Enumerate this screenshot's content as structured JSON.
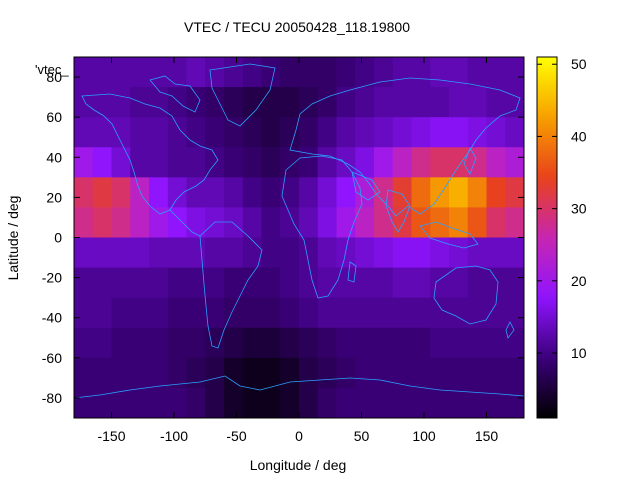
{
  "chart_data": {
    "type": "heatmap",
    "title": "VTEC / TECU 20050428_118.19800",
    "xlabel": "Longitude / deg",
    "ylabel": "Latitude / deg",
    "xlim": [
      -180,
      180
    ],
    "ylim": [
      -90,
      90
    ],
    "xticks": [
      -150,
      -100,
      -50,
      0,
      50,
      100,
      150
    ],
    "yticks": [
      -80,
      -60,
      -40,
      -20,
      0,
      20,
      40,
      60,
      80
    ],
    "colorbar": {
      "min": 1,
      "max": 51,
      "ticks": [
        10,
        20,
        30,
        40,
        50
      ],
      "stops": [
        "#000000",
        "#3b007a",
        "#8f14ff",
        "#c726b0",
        "#e8421a",
        "#f7a000",
        "#ffff00"
      ]
    },
    "grid": {
      "lon_start": -180,
      "lon_step": 15,
      "lat_start": 90,
      "lat_step": -15,
      "lon_count": 25,
      "values": [
        [
          12,
          12,
          12,
          12,
          12,
          12,
          13,
          12,
          11,
          10,
          9,
          8,
          8,
          8,
          9,
          10,
          11,
          12,
          12,
          13,
          13,
          12,
          12,
          12,
          12
        ],
        [
          12,
          12,
          12,
          11,
          11,
          10,
          9,
          8,
          7,
          6,
          6,
          6,
          7,
          8,
          10,
          11,
          12,
          12,
          12,
          12,
          13,
          13,
          12,
          12,
          12
        ],
        [
          13,
          13,
          13,
          12,
          12,
          11,
          10,
          9,
          8,
          7,
          6,
          7,
          8,
          10,
          12,
          13,
          14,
          15,
          16,
          17,
          17,
          16,
          15,
          14,
          13
        ],
        [
          20,
          18,
          15,
          12,
          12,
          11,
          11,
          10,
          9,
          8,
          7,
          8,
          9,
          12,
          14,
          16,
          20,
          24,
          28,
          30,
          30,
          28,
          24,
          22,
          20
        ],
        [
          30,
          32,
          30,
          24,
          18,
          15,
          13,
          13,
          12,
          10,
          9,
          10,
          12,
          15,
          18,
          22,
          28,
          33,
          38,
          42,
          44,
          40,
          34,
          32,
          30
        ],
        [
          28,
          30,
          28,
          24,
          20,
          18,
          16,
          15,
          14,
          12,
          10,
          11,
          13,
          16,
          20,
          24,
          28,
          32,
          36,
          38,
          40,
          36,
          30,
          28,
          28
        ],
        [
          14,
          14,
          14,
          14,
          13,
          13,
          13,
          12,
          12,
          11,
          10,
          10,
          11,
          13,
          14,
          15,
          16,
          17,
          17,
          16,
          15,
          14,
          14,
          14,
          14
        ],
        [
          11,
          11,
          11,
          11,
          11,
          10,
          10,
          10,
          9,
          9,
          9,
          10,
          11,
          12,
          12,
          12,
          12,
          13,
          13,
          12,
          12,
          11,
          11,
          11,
          11
        ],
        [
          11,
          11,
          10,
          10,
          10,
          9,
          9,
          9,
          8,
          8,
          8,
          9,
          10,
          11,
          11,
          11,
          11,
          11,
          11,
          11,
          11,
          11,
          11,
          11,
          11
        ],
        [
          10,
          10,
          9,
          9,
          9,
          8,
          8,
          7,
          6,
          5,
          5,
          6,
          7,
          8,
          9,
          9,
          9,
          9,
          9,
          10,
          10,
          10,
          10,
          10,
          10
        ],
        [
          9,
          9,
          9,
          9,
          9,
          8,
          7,
          6,
          4,
          3,
          3,
          4,
          6,
          7,
          8,
          9,
          9,
          9,
          9,
          9,
          9,
          9,
          9,
          9,
          9
        ],
        [
          9,
          9,
          9,
          9,
          9,
          9,
          8,
          6,
          4,
          3,
          3,
          4,
          6,
          8,
          9,
          9,
          9,
          9,
          9,
          9,
          9,
          9,
          9,
          9,
          9
        ]
      ]
    },
    "annotation": "'vtec_",
    "overlay": "coastlines"
  }
}
